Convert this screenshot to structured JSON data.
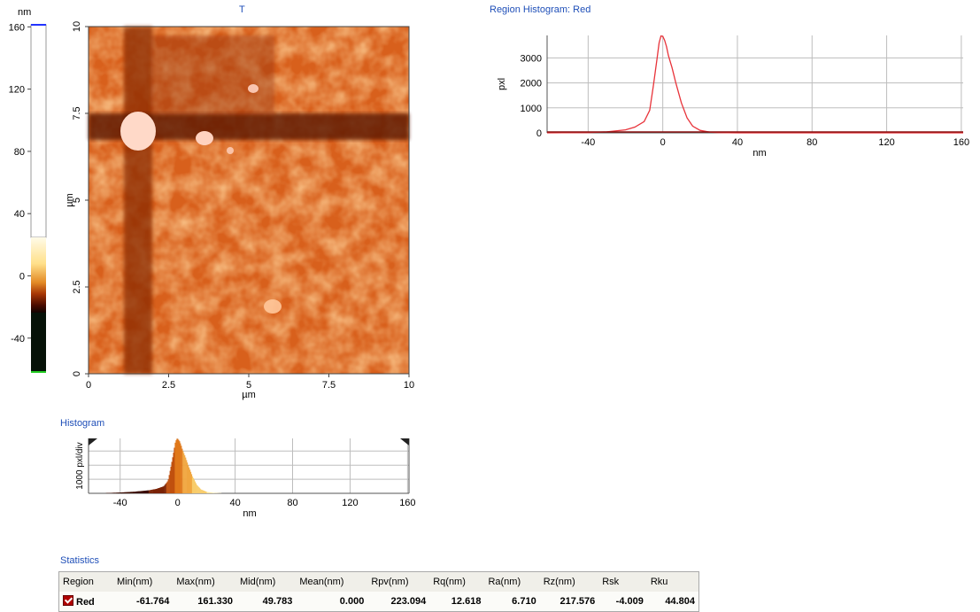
{
  "colorbar": {
    "unit": "nm",
    "ticks": [
      160,
      120,
      80,
      40,
      0,
      -40
    ],
    "min": -61.764,
    "max": 161.33
  },
  "image_panel": {
    "title": "T",
    "xlabel": "µm",
    "ylabel": "µm",
    "x_ticks": [
      "0",
      "2.5",
      "5",
      "7.5",
      "10"
    ],
    "y_ticks": [
      "0",
      "2.5",
      "5",
      "7.5",
      "10"
    ]
  },
  "region_histogram": {
    "title": "Region Histogram: Red",
    "color": "#e8333a"
  },
  "histogram": {
    "title": "Histogram"
  },
  "statistics": {
    "title": "Statistics",
    "headers": [
      "Region",
      "Min(nm)",
      "Max(nm)",
      "Mid(nm)",
      "Mean(nm)",
      "Rpv(nm)",
      "Rq(nm)",
      "Ra(nm)",
      "Rz(nm)",
      "Rsk",
      "Rku"
    ],
    "row": [
      "Red",
      "-61.764",
      "161.330",
      "49.783",
      "0.000",
      "223.094",
      "12.618",
      "6.710",
      "217.576",
      "-4.009",
      "44.804"
    ]
  },
  "chart_data": [
    {
      "type": "line",
      "title": "Region Histogram: Red",
      "xlabel": "nm",
      "ylabel": "pxl",
      "xlim": [
        -62,
        161
      ],
      "ylim": [
        0,
        3900
      ],
      "x_ticks": [
        -40,
        0,
        40,
        80,
        120,
        160
      ],
      "y_ticks": [
        0,
        1000,
        2000,
        3000
      ],
      "grid": true,
      "x": [
        -62,
        -40,
        -30,
        -20,
        -15,
        -10,
        -7,
        -5,
        -3,
        -2,
        -1,
        0,
        1,
        2,
        3,
        5,
        7,
        10,
        13,
        16,
        20,
        25,
        30,
        40,
        60,
        100,
        161
      ],
      "values": [
        0,
        10,
        40,
        120,
        230,
        450,
        900,
        1900,
        3000,
        3600,
        3880,
        3860,
        3700,
        3450,
        3100,
        2600,
        2000,
        1200,
        600,
        270,
        100,
        30,
        10,
        0,
        0,
        0,
        0
      ]
    },
    {
      "type": "bar",
      "title": "Histogram",
      "xlabel": "nm",
      "ylabel": "1000 pxl/div",
      "xlim": [
        -62,
        161
      ],
      "ylim": [
        0,
        3900
      ],
      "x_ticks": [
        -40,
        0,
        40,
        80,
        120,
        160
      ],
      "grid": true,
      "x": [
        -50,
        -40,
        -30,
        -20,
        -15,
        -10,
        -7,
        -5,
        -3,
        -2,
        -1,
        0,
        1,
        2,
        3,
        5,
        7,
        10,
        13,
        16,
        20,
        25,
        30
      ],
      "values": [
        20,
        60,
        120,
        220,
        320,
        500,
        900,
        1900,
        3000,
        3600,
        3880,
        3860,
        3700,
        3450,
        3100,
        2600,
        2000,
        1200,
        600,
        270,
        100,
        30,
        10
      ]
    }
  ]
}
